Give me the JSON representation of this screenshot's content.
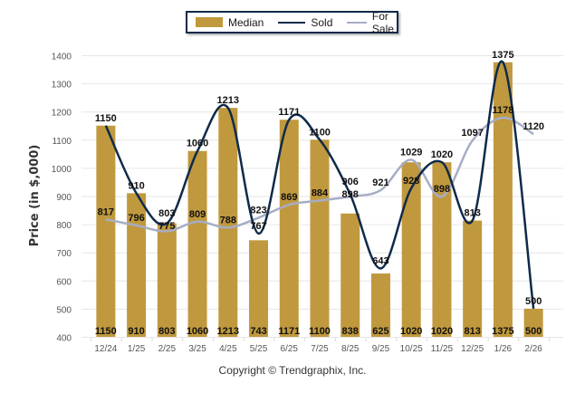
{
  "chart_data": {
    "type": "bar",
    "title": "",
    "xlabel": "",
    "ylabel": "Price (in $,000)",
    "ylim": [
      400,
      1400
    ],
    "yticks": [
      400,
      500,
      600,
      700,
      800,
      900,
      1000,
      1100,
      1200,
      1300,
      1400
    ],
    "grid": true,
    "legend_position": "top-center",
    "categories": [
      "12/24",
      "1/25",
      "2/25",
      "3/25",
      "4/25",
      "5/25",
      "6/25",
      "7/25",
      "8/25",
      "9/25",
      "10/25",
      "11/25",
      "12/25",
      "1/26",
      "2/26"
    ],
    "series": [
      {
        "name": "Median",
        "type": "bar",
        "color": "#c0993e",
        "values": [
          1150,
          910,
          803,
          1060,
          1213,
          743,
          1171,
          1100,
          838,
          625,
          1020,
          1020,
          813,
          1375,
          500
        ]
      },
      {
        "name": "Sold",
        "type": "line",
        "color": "#0f2a4a",
        "values": [
          1150,
          910,
          803,
          1060,
          1213,
          767,
          1171,
          1100,
          906,
          643,
          928,
          1020,
          813,
          1375,
          500
        ]
      },
      {
        "name": "For Sale",
        "type": "line",
        "color": "#a6adc4",
        "values": [
          817,
          796,
          775,
          809,
          788,
          823,
          869,
          884,
          898,
          921,
          1029,
          898,
          1097,
          1178,
          1120
        ]
      }
    ]
  },
  "legend": {
    "items": [
      {
        "label": "Median",
        "color": "#c0993e"
      },
      {
        "label": "Sold",
        "color": "#0f2a4a"
      },
      {
        "label": "For Sale",
        "color": "#a6adc4"
      }
    ]
  },
  "footer": {
    "copyright": "Copyright © Trendgraphix, Inc."
  }
}
